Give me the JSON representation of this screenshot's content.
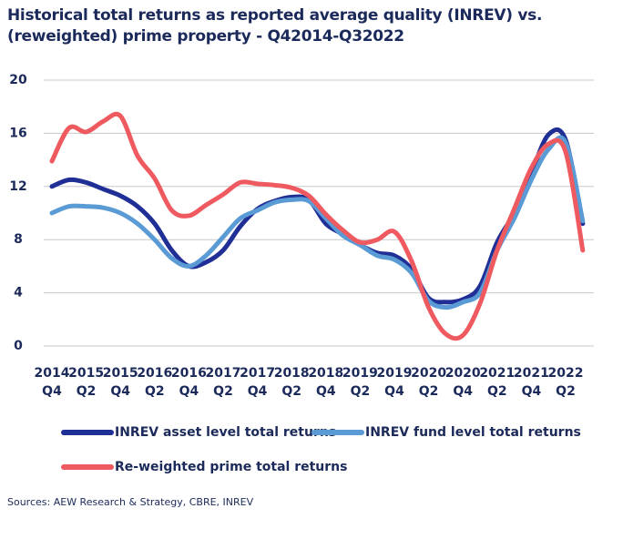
{
  "chart_data": {
    "type": "line",
    "title": "Historical total returns as reported average quality (INREV) vs. (reweighted) prime property  - Q42014-Q32022",
    "source": "Sources: AEW Research & Strategy, CBRE, INREV",
    "categories": [
      [
        "2014",
        "Q4"
      ],
      null,
      [
        "2015",
        "Q2"
      ],
      null,
      [
        "2015",
        "Q4"
      ],
      null,
      [
        "2016",
        "Q2"
      ],
      null,
      [
        "2016",
        "Q4"
      ],
      null,
      [
        "2017",
        "Q2"
      ],
      null,
      [
        "2017",
        "Q4"
      ],
      null,
      [
        "2018",
        "Q2"
      ],
      null,
      [
        "2018",
        "Q4"
      ],
      null,
      [
        "2019",
        "Q2"
      ],
      null,
      [
        "2019",
        "Q4"
      ],
      null,
      [
        "2020",
        "Q2"
      ],
      null,
      [
        "2020",
        "Q4"
      ],
      null,
      [
        "2021",
        "Q2"
      ],
      null,
      [
        "2021",
        "Q4"
      ],
      null,
      [
        "2022",
        "Q2"
      ],
      null
    ],
    "series": [
      {
        "name": "INREV asset level total returns",
        "color": "#1f2f96",
        "values": [
          12.0,
          12.5,
          12.3,
          11.8,
          11.3,
          10.5,
          9.2,
          7.2,
          6.0,
          6.3,
          7.2,
          9.0,
          10.3,
          10.9,
          11.2,
          11.0,
          9.2,
          8.4,
          7.6,
          7.0,
          6.8,
          5.8,
          3.6,
          3.3,
          3.5,
          4.5,
          7.8,
          10.0,
          13.0,
          15.9,
          15.5,
          9.2
        ]
      },
      {
        "name": "INREV fund level total returns",
        "color": "#5b9bd5",
        "values": [
          10.0,
          10.5,
          10.5,
          10.4,
          10.0,
          9.2,
          8.0,
          6.6,
          6.0,
          6.8,
          8.2,
          9.6,
          10.2,
          10.8,
          11.0,
          10.9,
          9.6,
          8.3,
          7.6,
          6.8,
          6.5,
          5.5,
          3.4,
          2.9,
          3.3,
          4.0,
          7.2,
          9.6,
          12.5,
          14.8,
          15.3,
          9.4
        ]
      },
      {
        "name": "Re-weighted prime total returns",
        "color": "#ee5a5f",
        "values": [
          13.9,
          16.4,
          16.1,
          16.9,
          17.3,
          14.3,
          12.6,
          10.2,
          9.8,
          10.6,
          11.4,
          12.3,
          12.2,
          12.1,
          11.9,
          11.3,
          9.9,
          8.7,
          7.8,
          8.0,
          8.6,
          6.4,
          2.9,
          0.9,
          0.8,
          3.2,
          7.2,
          10.3,
          13.4,
          15.2,
          14.6,
          7.2
        ]
      }
    ],
    "ylim": [
      0,
      20
    ],
    "yticks": [
      0,
      4,
      8,
      12,
      16,
      20
    ],
    "grid": true
  }
}
